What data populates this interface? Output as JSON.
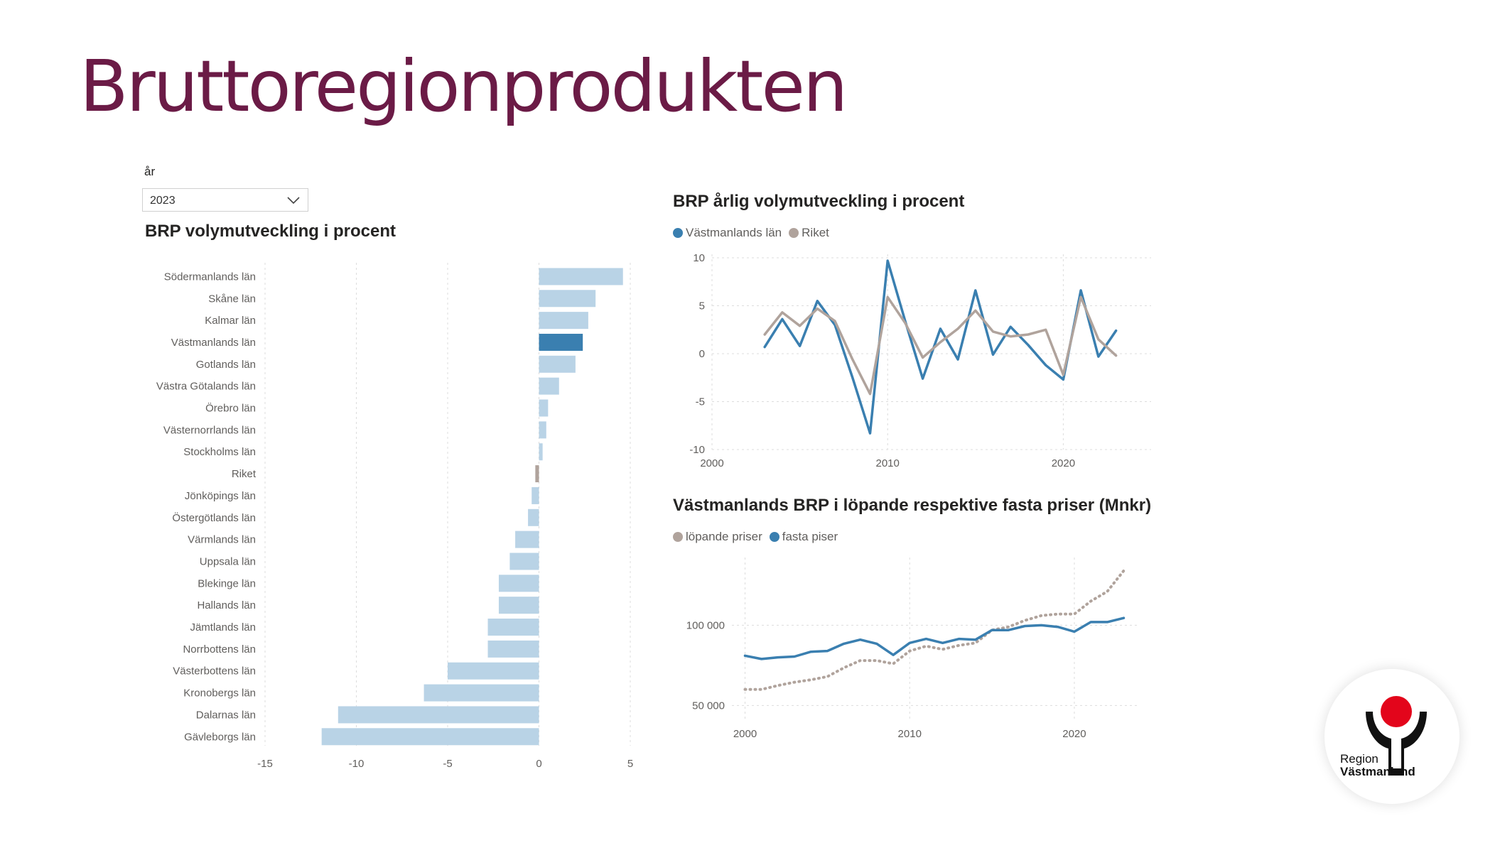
{
  "page": {
    "title": "Bruttoregionprodukten"
  },
  "slicer": {
    "label": "år",
    "value": "2023"
  },
  "logo": {
    "line1": "Region",
    "line2": "Västmanland"
  },
  "colors": {
    "title": "#6b1b46",
    "bar_light": "#b9d3e6",
    "bar_highlight": "#3a7fb0",
    "bar_riket": "#b0a39c",
    "series_blue": "#3a7fb0",
    "series_beige": "#b0a39c",
    "logo_red": "#e3051b"
  },
  "chart_data": [
    {
      "type": "bar",
      "orientation": "horizontal",
      "title": "BRP volymutveckling i procent",
      "categories": [
        "Södermanlands län",
        "Skåne län",
        "Kalmar län",
        "Västmanlands län",
        "Gotlands län",
        "Västra Götalands län",
        "Örebro län",
        "Västernorrlands län",
        "Stockholms län",
        "Riket",
        "Jönköpings län",
        "Östergötlands län",
        "Värmlands län",
        "Uppsala län",
        "Blekinge län",
        "Hallands län",
        "Jämtlands län",
        "Norrbottens län",
        "Västerbottens län",
        "Kronobergs län",
        "Dalarnas län",
        "Gävleborgs län"
      ],
      "values": [
        4.6,
        3.1,
        2.7,
        2.4,
        2.0,
        1.1,
        0.5,
        0.4,
        0.2,
        -0.2,
        -0.4,
        -0.6,
        -1.3,
        -1.6,
        -2.2,
        -2.2,
        -2.8,
        -2.8,
        -5.0,
        -6.3,
        -11.0,
        -11.9
      ],
      "highlight": {
        "Västmanlands län": "#3a7fb0",
        "Riket": "#b0a39c"
      },
      "xlim": [
        -15,
        5
      ],
      "xticks": [
        "-15",
        "-10",
        "-5",
        "0",
        "5"
      ],
      "grid": true
    },
    {
      "type": "line",
      "title": "BRP årlig volymutveckling i procent",
      "x": [
        2003,
        2004,
        2005,
        2006,
        2007,
        2008,
        2009,
        2010,
        2011,
        2012,
        2013,
        2014,
        2015,
        2016,
        2017,
        2018,
        2019,
        2020,
        2021,
        2022,
        2023
      ],
      "series": [
        {
          "name": "Västmanlands län",
          "color": "#3a7fb0",
          "values": [
            0.7,
            3.6,
            0.8,
            5.5,
            3.0,
            -2.5,
            -8.3,
            9.7,
            3.4,
            -2.6,
            2.6,
            -0.6,
            6.6,
            -0.1,
            2.8,
            0.9,
            -1.2,
            -2.7,
            6.6,
            -0.3,
            2.4
          ]
        },
        {
          "name": "Riket",
          "color": "#b0a39c",
          "values": [
            2.0,
            4.3,
            2.9,
            4.7,
            3.4,
            -0.6,
            -4.2,
            5.9,
            3.2,
            -0.4,
            1.2,
            2.6,
            4.5,
            2.3,
            1.8,
            2.0,
            2.5,
            -2.2,
            5.9,
            1.5,
            -0.2
          ]
        }
      ],
      "xlim": [
        2000,
        2025
      ],
      "ylim": [
        -10,
        10
      ],
      "xticks": [
        "2000",
        "2010",
        "2020"
      ],
      "yticks": [
        "10",
        "5",
        "0",
        "-5",
        "-10"
      ],
      "legend": "top-left",
      "grid": true
    },
    {
      "type": "line",
      "title": "Västmanlands BRP i löpande respektive fasta priser (Mnkr)",
      "x": [
        2000,
        2001,
        2002,
        2003,
        2004,
        2005,
        2006,
        2007,
        2008,
        2009,
        2010,
        2011,
        2012,
        2013,
        2014,
        2015,
        2016,
        2017,
        2018,
        2019,
        2020,
        2021,
        2022,
        2023
      ],
      "series": [
        {
          "name": "löpande priser",
          "color": "#b0a39c",
          "style": "dotted",
          "values": [
            60000,
            60000,
            62500,
            64500,
            66000,
            68000,
            73500,
            78000,
            78000,
            76000,
            84000,
            87000,
            85000,
            87500,
            89000,
            97000,
            99000,
            103000,
            106000,
            107000,
            107000,
            115000,
            121000,
            134000
          ]
        },
        {
          "name": "fasta piser",
          "color": "#3a7fb0",
          "style": "solid",
          "values": [
            81000,
            79000,
            80000,
            80500,
            83500,
            84000,
            88500,
            91000,
            88500,
            81500,
            89000,
            91500,
            89000,
            91500,
            91000,
            97000,
            97000,
            99500,
            100000,
            99000,
            96000,
            102000,
            102000,
            104500
          ]
        }
      ],
      "xlim": [
        1999.2,
        2023.8
      ],
      "ylim": [
        40000,
        140000
      ],
      "xticks": [
        "2000",
        "2010",
        "2020"
      ],
      "yticks": [
        "100 000",
        "50 000"
      ],
      "legend": "top-left",
      "grid": true
    }
  ]
}
